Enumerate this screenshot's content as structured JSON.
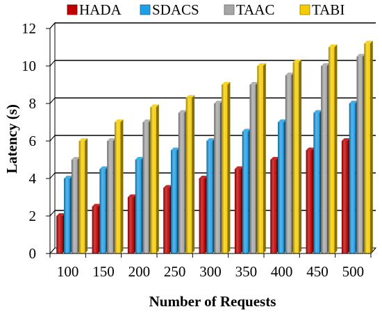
{
  "chart_data": {
    "type": "bar",
    "title": "",
    "xlabel": "Number of Requests",
    "ylabel": "Latency (s)",
    "categories": [
      "100",
      "150",
      "200",
      "250",
      "300",
      "350",
      "400",
      "450",
      "500"
    ],
    "ylim": [
      0,
      12
    ],
    "yticks": [
      "0",
      "2",
      "4",
      "6",
      "8",
      "10",
      "12"
    ],
    "grid": true,
    "legend_position": "top",
    "series": [
      {
        "name": "HADA",
        "color": "#c00000",
        "values": [
          2,
          2.5,
          3,
          3.5,
          4,
          4.5,
          5,
          5.5,
          6
        ]
      },
      {
        "name": "SDACS",
        "color": "#1f9fe5",
        "values": [
          4,
          4.5,
          5,
          5.5,
          6,
          6.5,
          7,
          7.5,
          8
        ]
      },
      {
        "name": "TAAC",
        "color": "#a6a6a6",
        "values": [
          5,
          6,
          7,
          7.5,
          8,
          9,
          9.5,
          10,
          10.5
        ]
      },
      {
        "name": "TABI",
        "color": "#f5cc00",
        "values": [
          6,
          7,
          7.8,
          8.3,
          9,
          10,
          10.2,
          11,
          11.2
        ]
      }
    ]
  }
}
